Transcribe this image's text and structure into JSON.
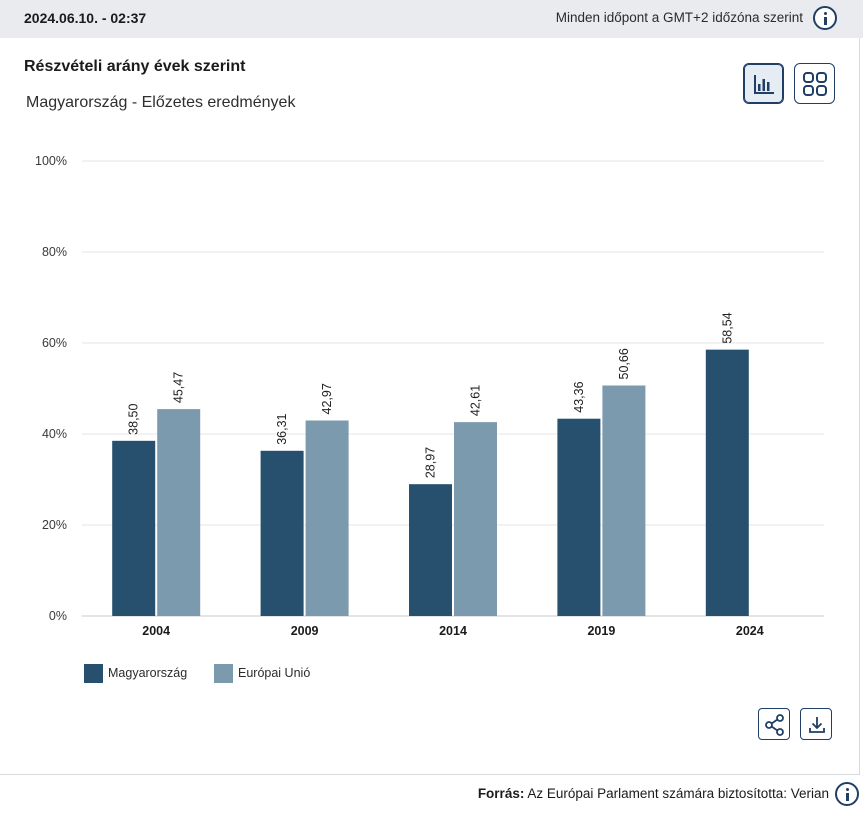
{
  "header": {
    "timestamp": "2024.06.10. - 02:37",
    "timezone_note": "Minden időpont a GMT+2 időzóna szerint"
  },
  "chart_panel": {
    "title": "Részvételi arány évek szerint",
    "subtitle": "Magyarország - Előzetes eredmények",
    "view_buttons": [
      {
        "name": "bar-chart-view",
        "icon": "bar-chart-icon",
        "active": true
      },
      {
        "name": "grid-view",
        "icon": "grid-icon",
        "active": false
      }
    ],
    "actions": [
      {
        "name": "share",
        "icon": "share-icon"
      },
      {
        "name": "download",
        "icon": "download-icon"
      }
    ]
  },
  "footer": {
    "source_label": "Forrás:",
    "source_text": "Az Európai Parlament számára biztosította: Verian"
  },
  "chart_data": {
    "type": "bar",
    "title": "Részvételi arány évek szerint",
    "subtitle": "Magyarország - Előzetes eredmények",
    "categories": [
      "2004",
      "2009",
      "2014",
      "2019",
      "2024"
    ],
    "series": [
      {
        "name": "Magyarország",
        "color": "#26506e",
        "values": [
          38.5,
          36.31,
          28.97,
          43.36,
          58.54
        ],
        "labels": [
          "38,50",
          "36,31",
          "28,97",
          "43,36",
          "58,54"
        ]
      },
      {
        "name": "Európai Unió",
        "color": "#7c9aae",
        "values": [
          45.47,
          42.97,
          42.61,
          50.66,
          null
        ],
        "labels": [
          "45,47",
          "42,97",
          "42,61",
          "50,66",
          null
        ]
      }
    ],
    "ylim": [
      0,
      100
    ],
    "yticks": [
      "0%",
      "20%",
      "40%",
      "60%",
      "80%",
      "100%"
    ],
    "ytick_values": [
      0,
      20,
      40,
      60,
      80,
      100
    ],
    "grid": true,
    "legend_position": "bottom-left"
  }
}
